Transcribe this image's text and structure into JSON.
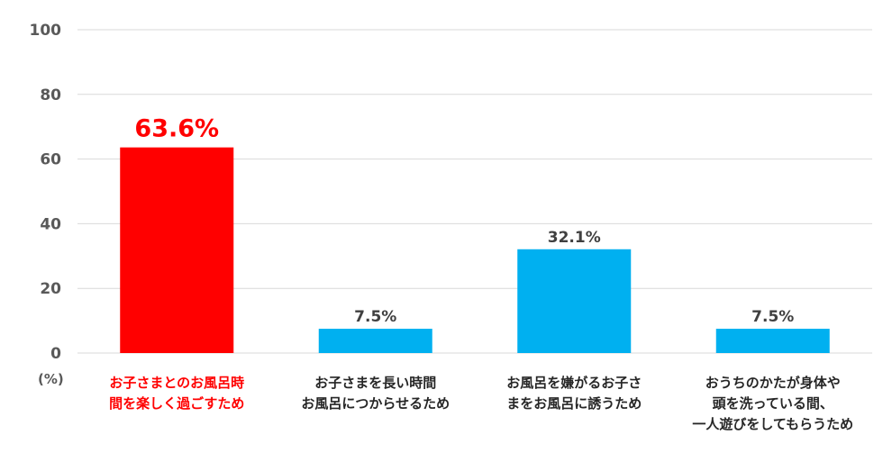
{
  "chart_data": {
    "type": "bar",
    "unit_label": "(%)",
    "ylim": [
      0,
      100
    ],
    "yticks": [
      0,
      20,
      40,
      60,
      80,
      100
    ],
    "grid": true,
    "legend": "none",
    "categories": [
      [
        "お子さまとのお風呂時",
        "間を楽しく過ごすため"
      ],
      [
        "お子さまを長い時間",
        "お風呂につからせるため"
      ],
      [
        "お風呂を嫌がるお子さ",
        "まをお風呂に誘うため"
      ],
      [
        "おうちのかたが身体や",
        "頭を洗っている間、",
        "一人遊びをしてもらうため"
      ]
    ],
    "values": [
      63.6,
      7.5,
      32.1,
      7.5
    ],
    "value_labels": [
      "63.6%",
      "7.5%",
      "32.1%",
      "7.5%"
    ],
    "highlight_index": 0,
    "colors": {
      "highlight": "#ff0000",
      "bar": "#00b0f0",
      "grid": "#d9d9d9",
      "axis_text": "#595959"
    }
  }
}
